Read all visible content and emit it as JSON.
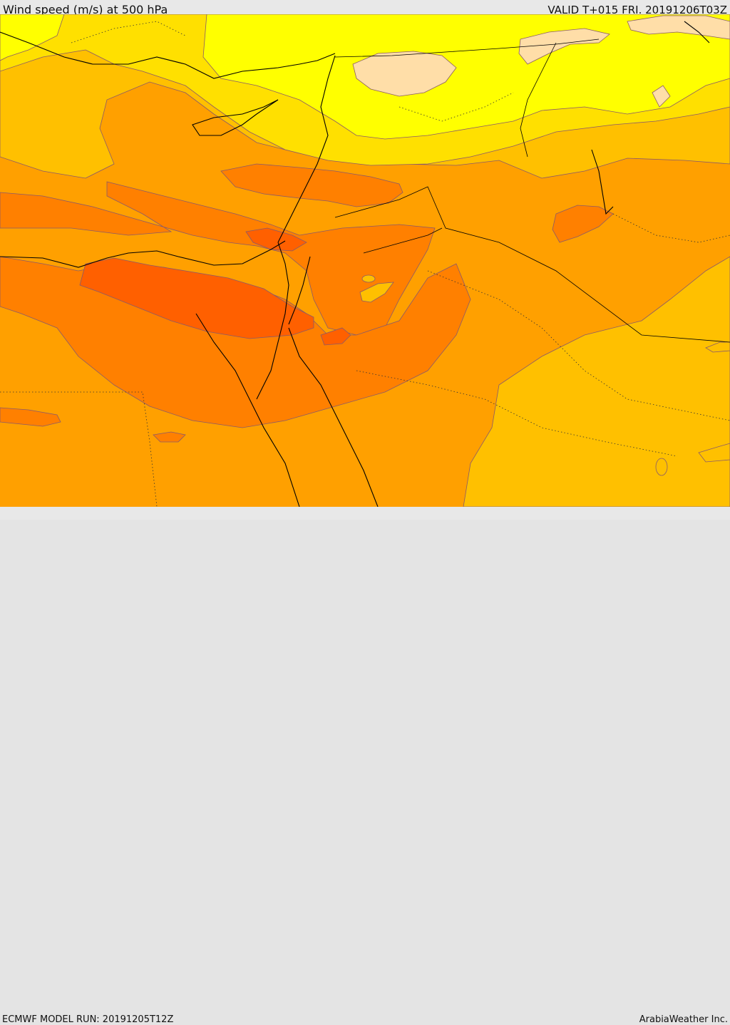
{
  "header": {
    "title": "Wind speed (m/s) at 500 hPa",
    "valid_time": "VALID T+015 FRI. 20191206T03Z"
  },
  "footer": {
    "model_run": "ECMWF MODEL RUN: 20191205T12Z",
    "credit": "ArabiaWeather Inc."
  },
  "palette": {
    "very_light": "#FFDEA8",
    "yellow": "#FFFF00",
    "gold": "#FFE000",
    "amber": "#FFC000",
    "orange": "#FFA000",
    "dark_orange": "#FF8000",
    "red_orange": "#FF6000",
    "contour": "#8a5a6a",
    "coast": "#000000"
  }
}
